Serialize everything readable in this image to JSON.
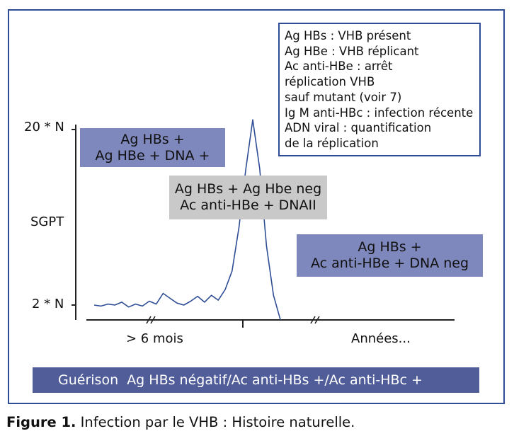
{
  "legend": {
    "lines": [
      "Ag HBs : VHB présent",
      "Ag HBe : VHB réplicant",
      "Ac anti-HBe : arrêt",
      "réplication VHB",
      "sauf mutant (voir 7)",
      "Ig M anti-HBc : infection récente",
      "ADN viral : quantification",
      "de la réplication"
    ]
  },
  "banners": {
    "phase1": {
      "line1": "Ag HBs +",
      "line2": "Ag HBe + DNA +"
    },
    "phase2": {
      "line1": "Ag HBs + Ag Hbe neg",
      "line2": "Ac anti-HBe + DNAII"
    },
    "phase3": {
      "line1": "Ag HBs +",
      "line2": "Ac anti-HBe + DNA neg"
    },
    "outcome": "Guérison  Ag HBs négatif/Ac anti-HBs +/Ac anti-HBc +"
  },
  "caption": {
    "label": "Figure 1.",
    "text": " Infection par le VHB : Histoire naturelle."
  },
  "colors": {
    "frame": "#2f4d95",
    "banner_blue": "#7f88bd",
    "banner_gray": "#c9c9c9",
    "bottom_banner": "#515d99",
    "line": "#2f4d95"
  },
  "chart_data": {
    "type": "line",
    "ylabel": "SGPT",
    "yticks": [
      "20 * N",
      "2 * N"
    ],
    "xticks": [
      "> 6 mois",
      "Années..."
    ],
    "axis_breaks": "two // breaks on x axis",
    "series": [
      {
        "values": [
          [
            0.0,
            2.0
          ],
          [
            0.03,
            1.9
          ],
          [
            0.06,
            2.1
          ],
          [
            0.09,
            2.0
          ],
          [
            0.12,
            2.3
          ],
          [
            0.15,
            1.8
          ],
          [
            0.18,
            2.1
          ],
          [
            0.21,
            1.9
          ],
          [
            0.24,
            2.4
          ],
          [
            0.27,
            2.1
          ],
          [
            0.3,
            3.2
          ],
          [
            0.33,
            2.7
          ],
          [
            0.36,
            2.2
          ],
          [
            0.39,
            2.0
          ],
          [
            0.42,
            2.4
          ],
          [
            0.45,
            2.9
          ],
          [
            0.48,
            2.3
          ],
          [
            0.51,
            3.0
          ],
          [
            0.54,
            2.5
          ],
          [
            0.57,
            3.6
          ],
          [
            0.6,
            5.5
          ],
          [
            0.63,
            10.0
          ],
          [
            0.66,
            16.0
          ],
          [
            0.69,
            21.0
          ],
          [
            0.72,
            16.0
          ],
          [
            0.75,
            8.0
          ],
          [
            0.78,
            3.0
          ],
          [
            0.81,
            0.5
          ]
        ]
      }
    ]
  }
}
